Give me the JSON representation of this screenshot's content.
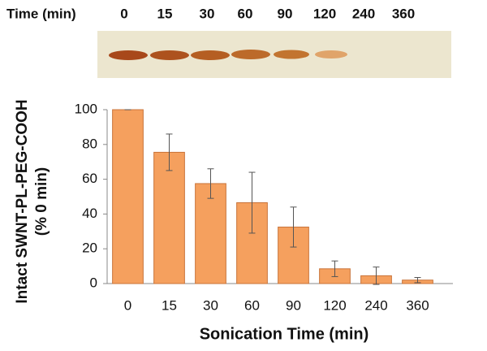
{
  "gel_strip": {
    "label": "Time (min)"
  },
  "chart_data": {
    "type": "bar",
    "y_label_lines": [
      "Intact SWNT-PL-PEG-COOH",
      "(% 0 min)"
    ],
    "x_label": "Sonication Time (min)",
    "categories": [
      "0",
      "15",
      "30",
      "60",
      "90",
      "120",
      "240",
      "360"
    ],
    "values": [
      100,
      75.5,
      57.5,
      46.5,
      32.5,
      8.5,
      4.5,
      2
    ],
    "errors": [
      0,
      10.5,
      8.5,
      17.5,
      11.5,
      4.5,
      5,
      1.5
    ],
    "color": "#f5a05e",
    "ylim": [
      0,
      100
    ],
    "yticks": [
      0,
      20,
      40,
      60,
      80,
      100
    ]
  }
}
